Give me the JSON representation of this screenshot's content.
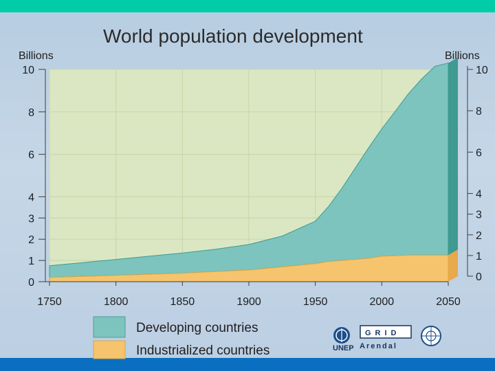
{
  "colors": {
    "top_bar": "#00cca8",
    "bottom_bar": "#0a6fc0",
    "developing": "#7cc4bd",
    "developing_edge": "#3f9a92",
    "industrialized": "#f5c46c",
    "plot_bg": "#dbe7c3",
    "grid": "#c9d8a9"
  },
  "chart_data": {
    "type": "area",
    "stacked": true,
    "title": "World population development",
    "ylabel_left": "Billions",
    "ylabel_right": "Billions",
    "x_ticks": [
      1750,
      1800,
      1850,
      1900,
      1950,
      2000,
      2050
    ],
    "y_ticks_left": [
      0,
      1,
      2,
      3,
      4,
      6,
      8,
      10
    ],
    "y_ticks_right": [
      0,
      1,
      2,
      3,
      4,
      6,
      8,
      10
    ],
    "xlim": [
      1750,
      2050
    ],
    "ylim": [
      0,
      10
    ],
    "grid": true,
    "legend_position": "bottom",
    "x": [
      1750,
      1775,
      1800,
      1825,
      1850,
      1875,
      1900,
      1925,
      1950,
      1960,
      1970,
      1980,
      1990,
      2000,
      2010,
      2020,
      2030,
      2040,
      2050
    ],
    "series": [
      {
        "name": "Industrialized countries",
        "values": [
          0.2,
          0.25,
          0.3,
          0.35,
          0.4,
          0.48,
          0.55,
          0.7,
          0.85,
          0.95,
          1.0,
          1.05,
          1.1,
          1.2,
          1.22,
          1.25,
          1.25,
          1.25,
          1.25
        ]
      },
      {
        "name": "Developing countries",
        "values": [
          0.55,
          0.65,
          0.75,
          0.85,
          0.95,
          1.05,
          1.2,
          1.45,
          2.0,
          2.6,
          3.4,
          4.3,
          5.2,
          6.0,
          6.8,
          7.6,
          8.3,
          8.9,
          9.05
        ]
      }
    ]
  },
  "logos": {
    "unep": "UNEP",
    "grid_top": "GRID",
    "grid_bottom": "Arendal"
  }
}
